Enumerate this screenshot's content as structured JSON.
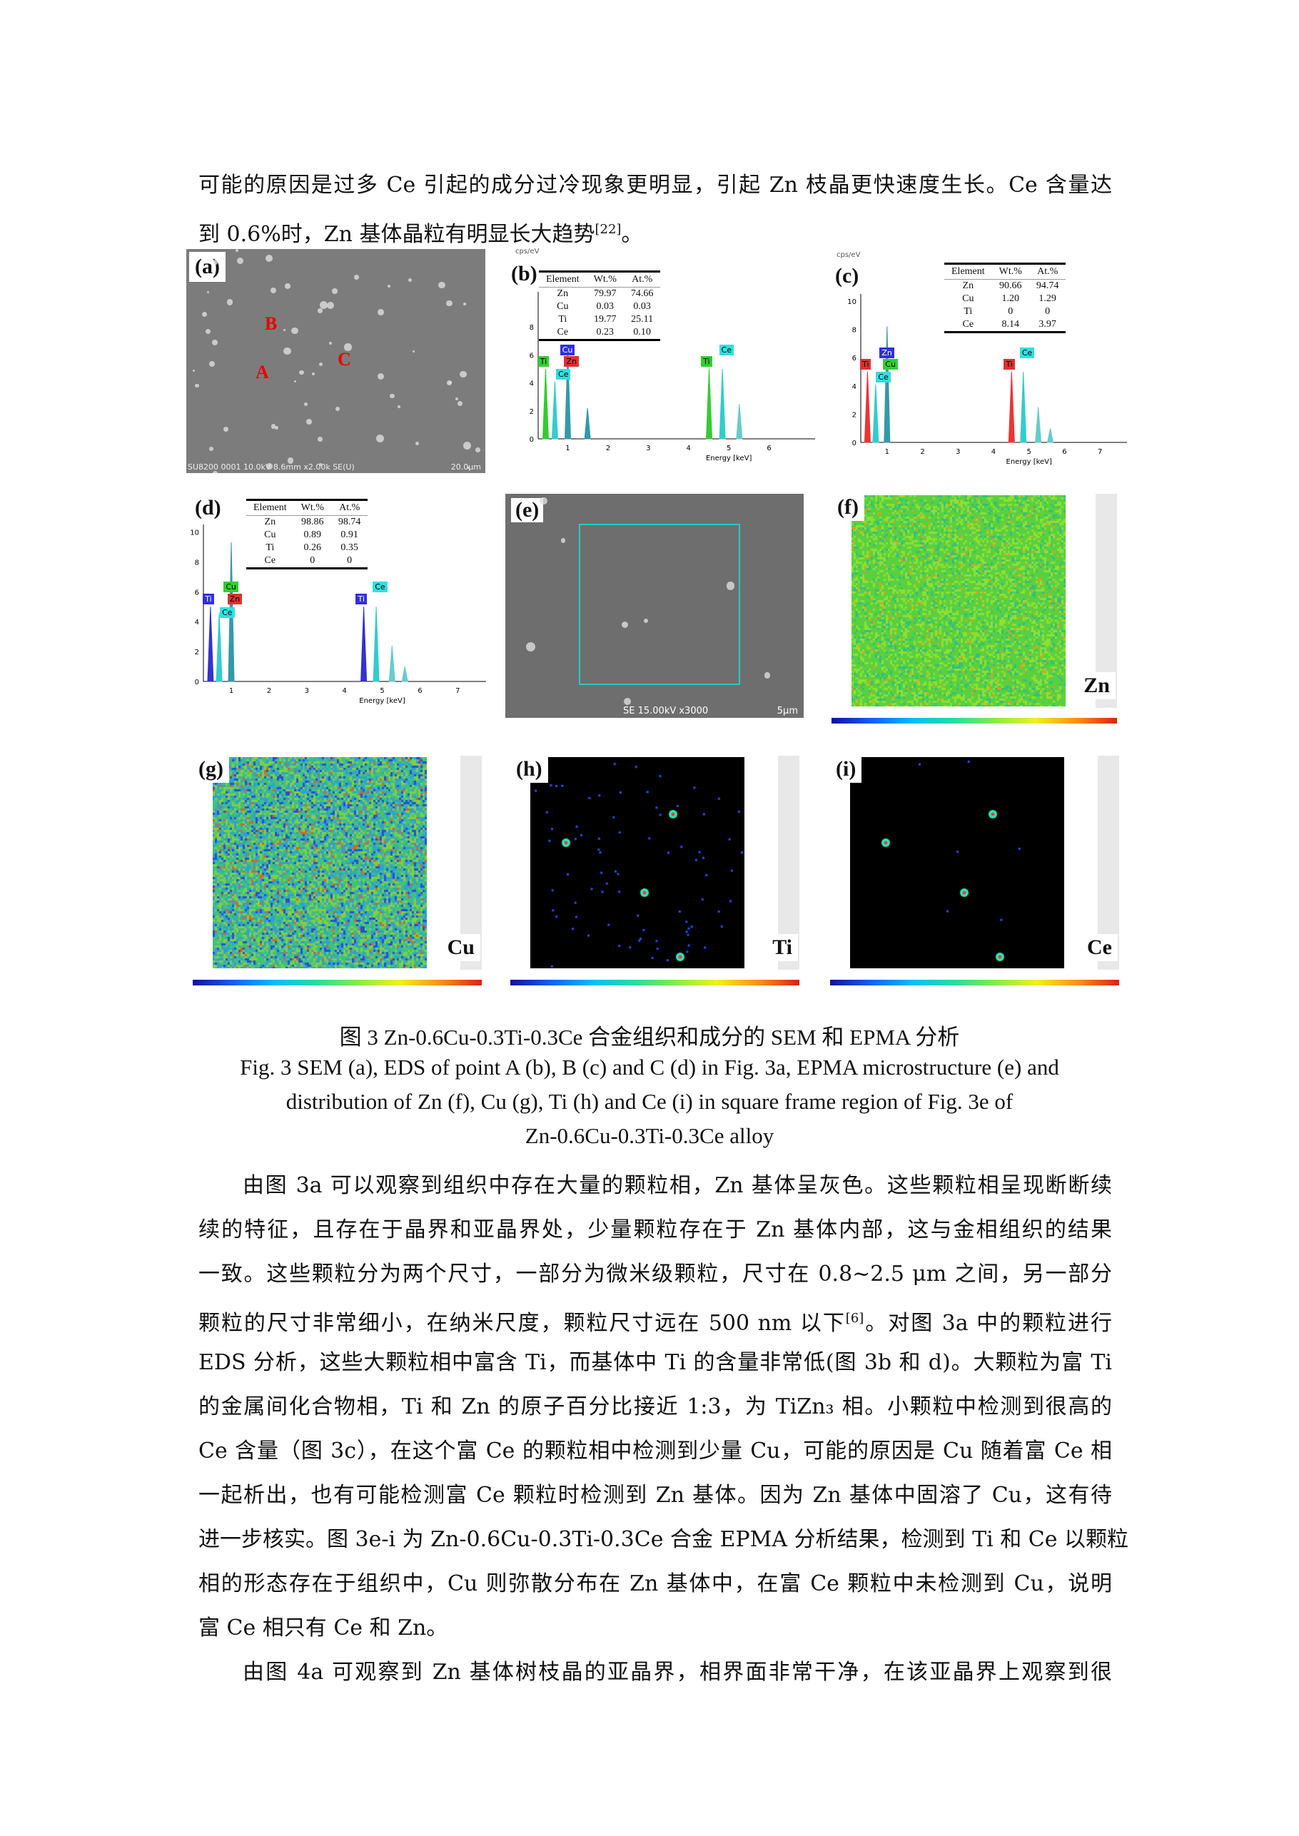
{
  "body_top": [
    "可能的原因是过多 Ce 引起的成分过冷现象更明显，引起 Zn 枝晶更快速度生长。Ce 含量达",
    {
      "text": "到 0.6%时，Zn 基体晶粒有明显长大趋势",
      "sup": "[22]",
      "tail": "。"
    }
  ],
  "figure": {
    "a": {
      "label": "(a)",
      "points": [
        "A",
        "B",
        "C"
      ],
      "footer": "SU8200 0001 10.0kV 8.6mm x2.00k SE(U)",
      "scale": "20.0μm"
    },
    "b": {
      "label": "(b)",
      "unit": "cps/eV",
      "xlabel": "Energy [keV]",
      "xticks": [
        "1",
        "2",
        "3",
        "4",
        "5",
        "6"
      ],
      "yticks": [
        "0",
        "2",
        "4",
        "6",
        "8"
      ],
      "table": {
        "headers": [
          "Element",
          "Wt.%",
          "At.%"
        ],
        "rows": [
          [
            "Zn",
            "79.97",
            "74.66"
          ],
          [
            "Cu",
            "0.03",
            "0.03"
          ],
          [
            "Ti",
            "19.77",
            "25.11"
          ],
          [
            "Ce",
            "0.23",
            "0.10"
          ]
        ]
      },
      "tags": [
        {
          "t": "Ti",
          "c": "#30d030"
        },
        {
          "t": "Cu",
          "c": "#3030e0"
        },
        {
          "t": "Zn",
          "c": "#e03030"
        },
        {
          "t": "Ce",
          "c": "#30e0e0"
        },
        {
          "t": "Ti",
          "c": "#30d030"
        },
        {
          "t": "Ce",
          "c": "#30e0e0"
        }
      ]
    },
    "c": {
      "label": "(c)",
      "unit": "cps/eV",
      "xlabel": "Energy [keV]",
      "xticks": [
        "1",
        "2",
        "3",
        "4",
        "5",
        "6",
        "7"
      ],
      "yticks": [
        "0",
        "2",
        "4",
        "6",
        "8",
        "10"
      ],
      "table": {
        "headers": [
          "Element",
          "Wt.%",
          "At.%"
        ],
        "rows": [
          [
            "Zn",
            "90.66",
            "94.74"
          ],
          [
            "Cu",
            "1.20",
            "1.29"
          ],
          [
            "Ti",
            "0",
            "0"
          ],
          [
            "Ce",
            "8.14",
            "3.97"
          ]
        ]
      },
      "tags": [
        {
          "t": "Ti",
          "c": "#e03030"
        },
        {
          "t": "Zn",
          "c": "#3030e0"
        },
        {
          "t": "Cu",
          "c": "#30d030"
        },
        {
          "t": "Ce",
          "c": "#30e0e0"
        },
        {
          "t": "Ti",
          "c": "#e03030"
        },
        {
          "t": "Ce",
          "c": "#30e0e0"
        }
      ]
    },
    "d": {
      "label": "(d)",
      "xlabel": "Energy [keV]",
      "xticks": [
        "1",
        "2",
        "3",
        "4",
        "5",
        "6",
        "7"
      ],
      "yticks": [
        "0",
        "2",
        "4",
        "6",
        "8",
        "10"
      ],
      "table": {
        "headers": [
          "Element",
          "Wt.%",
          "At.%"
        ],
        "rows": [
          [
            "Zn",
            "98.86",
            "98.74"
          ],
          [
            "Cu",
            "0.89",
            "0.91"
          ],
          [
            "Ti",
            "0.26",
            "0.35"
          ],
          [
            "Ce",
            "0",
            "0"
          ]
        ]
      },
      "tags": [
        {
          "t": "Ti",
          "c": "#3030e0"
        },
        {
          "t": "Cu",
          "c": "#30d030"
        },
        {
          "t": "Zn",
          "c": "#e03030"
        },
        {
          "t": "Ce",
          "c": "#30e0e0"
        },
        {
          "t": "Ti",
          "c": "#3030e0"
        },
        {
          "t": "Ce",
          "c": "#30e0e0"
        }
      ]
    },
    "e": {
      "label": "(e)",
      "footer": "SE   15.00kV   x3000",
      "scale": "5μm"
    },
    "f": {
      "label": "(f)",
      "element": "Zn"
    },
    "g": {
      "label": "(g)",
      "element": "Cu"
    },
    "h": {
      "label": "(h)",
      "element": "Ti"
    },
    "i": {
      "label": "(i)",
      "element": "Ce"
    }
  },
  "caption": {
    "zh": "图 3 Zn-0.6Cu-0.3Ti-0.3Ce 合金组织和成分的 SEM 和 EPMA 分析",
    "en": [
      "Fig. 3 SEM (a), EDS of point A (b), B (c) and C (d) in Fig. 3a, EPMA microstructure (e) and",
      "distribution of Zn (f), Cu (g), Ti (h) and Ce (i) in square frame region of Fig. 3e of",
      "Zn-0.6Cu-0.3Ti-0.3Ce alloy"
    ]
  },
  "body": [
    "由图 3a 可以观察到组织中存在大量的颗粒相，Zn 基体呈灰色。这些颗粒相呈现断断续",
    "续的特征，且存在于晶界和亚晶界处，少量颗粒存在于 Zn 基体内部，这与金相组织的结果",
    "一致。这些颗粒分为两个尺寸，一部分为微米级颗粒，尺寸在 0.8~2.5  μm 之间，另一部分",
    {
      "text": "颗粒的尺寸非常细小，在纳米尺度，颗粒尺寸远在 500  nm 以下",
      "sup": "[6]",
      "tail": "。对图 3a 中的颗粒进行"
    },
    "EDS 分析，这些大颗粒相中富含 Ti，而基体中 Ti 的含量非常低(图 3b 和 d)。大颗粒为富 Ti",
    "的金属间化合物相，Ti 和 Zn 的原子百分比接近 1:3，为 TiZn₃ 相。小颗粒中检测到很高的",
    "Ce 含量（图 3c），在这个富 Ce 的颗粒相中检测到少量 Cu，可能的原因是 Cu 随着富 Ce 相",
    "一起析出，也有可能检测富 Ce 颗粒时检测到 Zn 基体。因为 Zn 基体中固溶了 Cu，这有待",
    "进一步核实。图 3e-i 为 Zn-0.6Cu-0.3Ti-0.3Ce 合金 EPMA 分析结果，检测到 Ti 和 Ce 以颗粒",
    "相的形态存在于组织中，Cu 则弥散分布在 Zn 基体中，在富 Ce 颗粒中未检测到 Cu，说明",
    "富 Ce 相只有 Ce 和 Zn。",
    "由图 4a 可观察到 Zn 基体树枝晶的亚晶界，相界面非常干净，在该亚晶界上观察到很"
  ]
}
